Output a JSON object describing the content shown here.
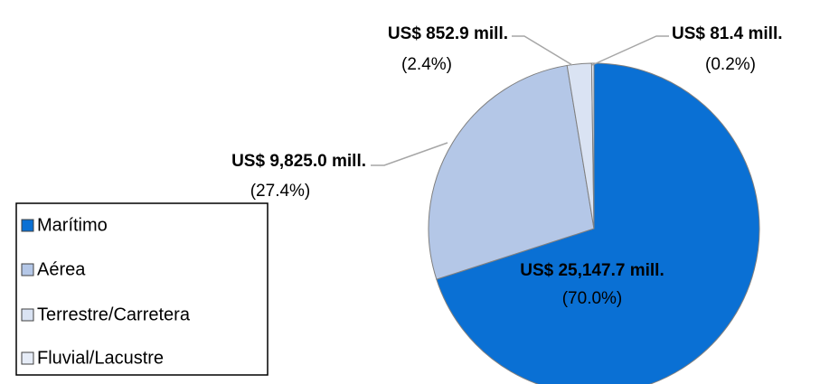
{
  "chart_data": {
    "type": "pie",
    "categories": [
      "Marítimo",
      "Aérea",
      "Terrestre/Carretera",
      "Fluvial/Lacustre"
    ],
    "values": [
      25147.7,
      9825.0,
      852.9,
      81.4
    ],
    "value_labels": [
      "US$ 25,147.7 mill.",
      "US$ 9,825.0 mill.",
      "US$ 852.9 mill.",
      "US$ 81.4 mill."
    ],
    "percents": [
      70.0,
      27.4,
      2.4,
      0.2
    ],
    "percent_labels": [
      "(70.0%)",
      "(27.4%)",
      "(2.4%)",
      "(0.2%)"
    ],
    "colors": [
      "#0a70d4",
      "#b4c7e7",
      "#dae3f3",
      "#e6ecf7"
    ],
    "legend": "left"
  }
}
